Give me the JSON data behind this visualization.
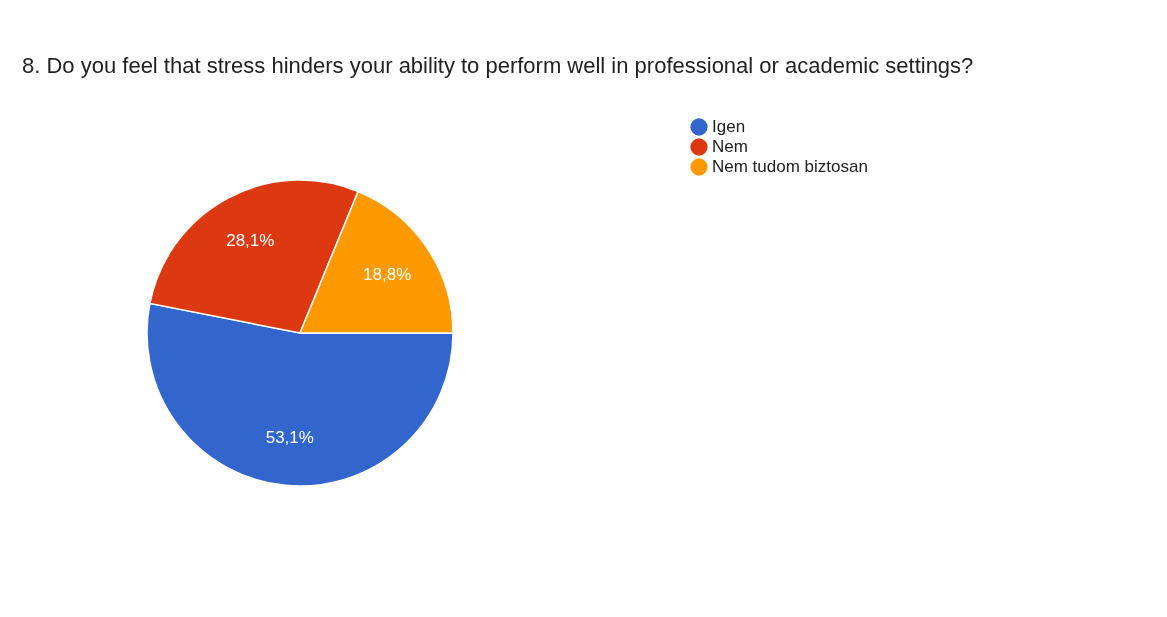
{
  "chart_data": {
    "type": "pie",
    "title": "8. Do you feel that stress hinders your ability to perform well in professional or academic settings?",
    "categories": [
      "Igen",
      "Nem",
      "Nem tudom biztosan"
    ],
    "values": [
      53.1,
      28.1,
      18.8
    ],
    "value_labels": [
      "53,1%",
      "28,1%",
      "18,8%"
    ],
    "colors": [
      "#3366cc",
      "#dc3912",
      "#ff9900"
    ],
    "legend": "right"
  }
}
